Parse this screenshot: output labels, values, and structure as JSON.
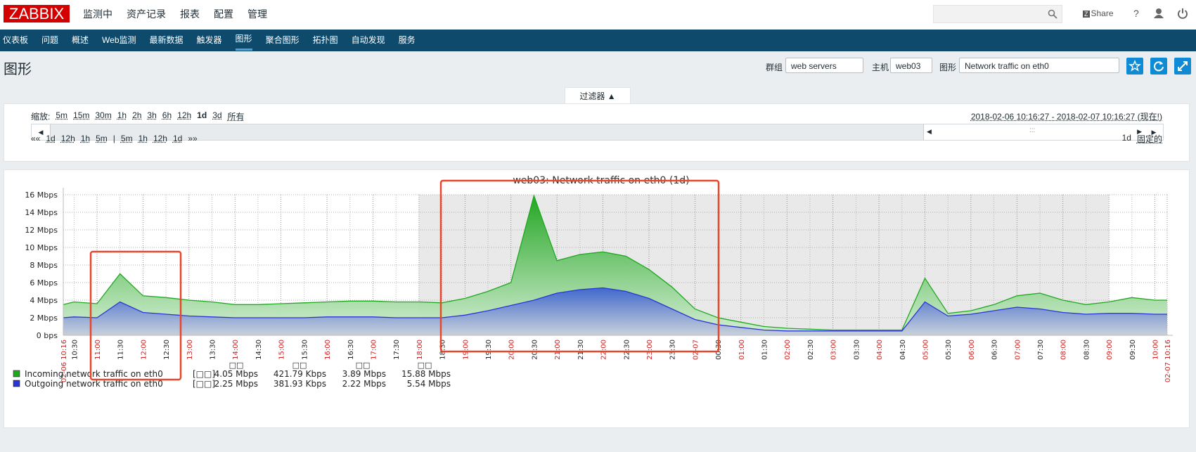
{
  "header": {
    "logo": "ZABBIX",
    "menu": [
      "监测中",
      "资产记录",
      "报表",
      "配置",
      "管理"
    ],
    "share": "Share",
    "help": "?"
  },
  "nav": {
    "items": [
      "仪表板",
      "问题",
      "概述",
      "Web监测",
      "最新数据",
      "触发器",
      "图形",
      "聚合图形",
      "拓扑图",
      "自动发现",
      "服务"
    ],
    "active": 6
  },
  "page": {
    "title": "图形",
    "group_label": "群组",
    "group": "web servers",
    "host_label": "主机",
    "host": "web03",
    "graph_label": "图形",
    "graph": "Network traffic on eth0"
  },
  "filter": {
    "tab": "过滤器 ▲",
    "zoom_label": "缩放:",
    "zoom": [
      "5m",
      "15m",
      "30m",
      "1h",
      "2h",
      "3h",
      "6h",
      "12h",
      "1d",
      "3d",
      "所有"
    ],
    "zoom_active": 8,
    "range": "2018-02-06 10:16:27 - 2018-02-07 10:16:27 (现在!)",
    "handle": ":::",
    "nav_back": [
      "««",
      "1d",
      "12h",
      "1h",
      "5m"
    ],
    "separator": "|",
    "nav_forward": [
      "5m",
      "1h",
      "12h",
      "1d",
      "»»"
    ],
    "period": "1d",
    "fixed": "固定的"
  },
  "chart_data": {
    "type": "area",
    "title": "web03: Network traffic on eth0 (1d)",
    "x": [
      "02-06 10:16",
      "10:30",
      "11:00",
      "11:30",
      "12:00",
      "12:30",
      "13:00",
      "13:30",
      "14:00",
      "14:30",
      "15:00",
      "15:30",
      "16:00",
      "16:30",
      "17:00",
      "17:30",
      "18:00",
      "18:30",
      "19:00",
      "19:30",
      "20:00",
      "20:30",
      "21:00",
      "21:30",
      "22:00",
      "22:30",
      "23:00",
      "23:30",
      "02-07",
      "00:30",
      "01:00",
      "01:30",
      "02:00",
      "02:30",
      "03:00",
      "03:30",
      "04:00",
      "04:30",
      "05:00",
      "05:30",
      "06:00",
      "06:30",
      "07:00",
      "07:30",
      "08:00",
      "08:30",
      "09:00",
      "09:30",
      "10:00",
      "02-07 10:16"
    ],
    "ylim": [
      0,
      16
    ],
    "yticks": [
      {
        "value": 0,
        "label": "0 bps"
      },
      {
        "value": 2,
        "label": "2 Mbps"
      },
      {
        "value": 4,
        "label": "4 Mbps"
      },
      {
        "value": 6,
        "label": "6 Mbps"
      },
      {
        "value": 8,
        "label": "8 Mbps"
      },
      {
        "value": 10,
        "label": "10 Mbps"
      },
      {
        "value": 12,
        "label": "12 Mbps"
      },
      {
        "value": 14,
        "label": "14 Mbps"
      },
      {
        "value": 16,
        "label": "16 Mbps"
      }
    ],
    "grid": true,
    "series": [
      {
        "name": "Incoming network traffic on eth0",
        "color": "#1fa81f",
        "values": [
          3.5,
          3.8,
          3.6,
          7.0,
          4.5,
          4.3,
          4.0,
          3.8,
          3.5,
          3.5,
          3.6,
          3.7,
          3.8,
          3.9,
          3.9,
          3.8,
          3.8,
          3.7,
          4.2,
          5.0,
          6.0,
          15.9,
          8.5,
          9.2,
          9.5,
          9.0,
          7.5,
          5.5,
          3.0,
          2.0,
          1.5,
          1.0,
          0.8,
          0.7,
          0.6,
          0.6,
          0.6,
          0.6,
          6.5,
          2.5,
          2.8,
          3.5,
          4.5,
          4.8,
          4.0,
          3.5,
          3.8,
          4.3,
          4.0,
          4.0
        ]
      },
      {
        "name": "Outgoing network traffic on eth0",
        "color": "#2a35d6",
        "values": [
          2.0,
          2.1,
          2.0,
          3.8,
          2.6,
          2.4,
          2.2,
          2.1,
          2.0,
          2.0,
          2.0,
          2.0,
          2.1,
          2.1,
          2.1,
          2.0,
          2.0,
          2.0,
          2.3,
          2.8,
          3.4,
          4.0,
          4.8,
          5.2,
          5.4,
          5.0,
          4.2,
          3.0,
          1.8,
          1.2,
          0.9,
          0.6,
          0.5,
          0.5,
          0.5,
          0.5,
          0.5,
          0.5,
          3.8,
          2.2,
          2.4,
          2.8,
          3.2,
          3.0,
          2.6,
          2.4,
          2.5,
          2.5,
          2.4,
          2.4
        ]
      }
    ],
    "legend_table": {
      "headers": [
        "□□",
        "□□",
        "□□",
        "□□"
      ],
      "rows": [
        [
          "[□□]",
          "4.05 Mbps",
          "421.79 Kbps",
          "3.89 Mbps",
          "15.88 Mbps"
        ],
        [
          "[□□]",
          "2.25 Mbps",
          "381.93 Kbps",
          "2.22 Mbps",
          "5.54 Mbps"
        ]
      ]
    }
  }
}
